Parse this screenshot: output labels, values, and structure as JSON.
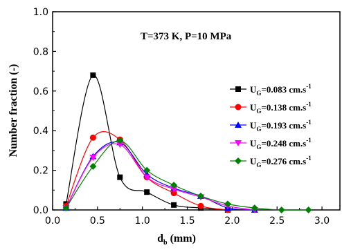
{
  "chart_data": {
    "type": "line",
    "annotation": "T=373 K, P=10 MPa",
    "xlabel": "d",
    "xlabel_sub": "b",
    "xlabel_unit": " (mm)",
    "ylabel": "Number fraction (-)",
    "xlim": [
      0.0,
      3.2
    ],
    "ylim": [
      0.0,
      1.0
    ],
    "x_ticks": [
      "0.0",
      "0.5",
      "1.0",
      "1.5",
      "2.0",
      "2.5",
      "3.0"
    ],
    "y_ticks": [
      "0.0",
      "0.2",
      "0.4",
      "0.6",
      "0.8",
      "1.0"
    ],
    "x_tick_values": [
      0.0,
      0.5,
      1.0,
      1.5,
      2.0,
      2.5,
      3.0
    ],
    "y_tick_values": [
      0.0,
      0.2,
      0.4,
      0.6,
      0.8,
      1.0
    ],
    "grid": false,
    "legend_position": "right",
    "series": [
      {
        "name": "U",
        "name_sub": "G",
        "name_rest": "=0.083 cm.s",
        "name_sup": "-1",
        "color": "#000000",
        "marker": "square",
        "x": [
          0.15,
          0.45,
          0.75,
          1.05,
          1.35,
          1.65,
          1.95
        ],
        "y": [
          0.03,
          0.68,
          0.165,
          0.09,
          0.025,
          0.01,
          0.0
        ]
      },
      {
        "name": "U",
        "name_sub": "G",
        "name_rest": "=0.138 cm.s",
        "name_sup": "-1",
        "color": "#ff0000",
        "marker": "circle",
        "x": [
          0.15,
          0.45,
          0.75,
          1.05,
          1.35,
          1.65,
          1.95
        ],
        "y": [
          0.02,
          0.365,
          0.355,
          0.165,
          0.085,
          0.02,
          0.0
        ]
      },
      {
        "name": "U",
        "name_sub": "G",
        "name_rest": "=0.193 cm.s",
        "name_sup": "-1",
        "color": "#0000ff",
        "marker": "triangle-up",
        "x": [
          0.15,
          0.45,
          0.75,
          1.05,
          1.35,
          1.65,
          1.95,
          2.25
        ],
        "y": [
          0.01,
          0.27,
          0.34,
          0.18,
          0.11,
          0.07,
          0.01,
          0.0
        ]
      },
      {
        "name": "U",
        "name_sub": "G",
        "name_rest": "=0.248 cm.s",
        "name_sup": "-1",
        "color": "#ff00ff",
        "marker": "triangle-down",
        "x": [
          0.15,
          0.45,
          0.75,
          1.05,
          1.35,
          1.65,
          1.95,
          2.25
        ],
        "y": [
          0.01,
          0.265,
          0.33,
          0.165,
          0.105,
          0.065,
          0.02,
          0.0
        ]
      },
      {
        "name": "U",
        "name_sub": "G",
        "name_rest": "=0.276 cm.s",
        "name_sup": "-1",
        "color": "#008000",
        "marker": "diamond",
        "x": [
          0.15,
          0.45,
          0.75,
          1.05,
          1.35,
          1.65,
          1.95,
          2.25,
          2.55,
          2.85
        ],
        "y": [
          0.01,
          0.22,
          0.35,
          0.2,
          0.125,
          0.07,
          0.03,
          0.01,
          0.0,
          0.0
        ]
      }
    ]
  }
}
